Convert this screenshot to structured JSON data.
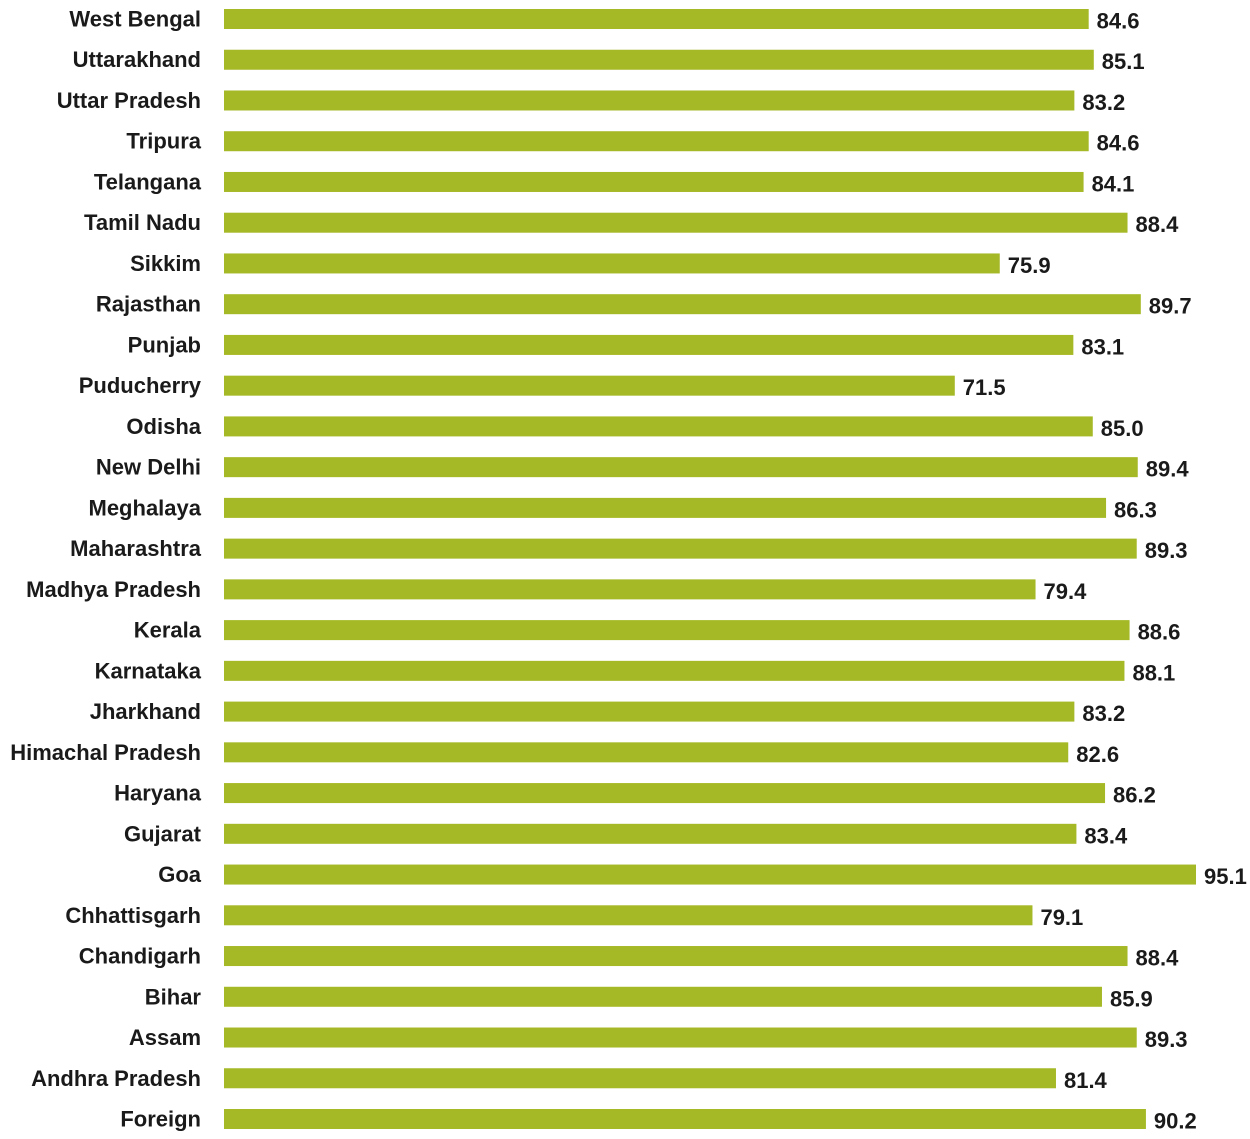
{
  "chart_data": {
    "type": "bar",
    "orientation": "horizontal",
    "title": "",
    "xlabel": "",
    "ylabel": "",
    "xlim": [
      0,
      95.1
    ],
    "grid": false,
    "legend": "none",
    "bar_color": "#a5b825",
    "categories": [
      "West Bengal",
      "Uttarakhand",
      "Uttar Pradesh",
      "Tripura",
      "Telangana",
      "Tamil Nadu",
      "Sikkim",
      "Rajasthan",
      "Punjab",
      "Puducherry",
      "Odisha",
      "New Delhi",
      "Meghalaya",
      "Maharashtra",
      "Madhya Pradesh",
      "Kerala",
      "Karnataka",
      "Jharkhand",
      "Himachal Pradesh",
      "Haryana",
      "Gujarat",
      "Goa",
      "Chhattisgarh",
      "Chandigarh",
      "Bihar",
      "Assam",
      "Andhra Pradesh",
      "Foreign"
    ],
    "values": [
      84.6,
      85.1,
      83.2,
      84.6,
      84.1,
      88.4,
      75.9,
      89.7,
      83.1,
      71.5,
      85.0,
      89.4,
      86.3,
      89.3,
      79.4,
      88.6,
      88.1,
      83.2,
      82.6,
      86.2,
      83.4,
      95.1,
      79.1,
      88.4,
      85.9,
      89.3,
      81.4,
      90.2
    ],
    "value_labels": [
      "84.6",
      "85.1",
      "83.2",
      "84.6",
      "84.1",
      "88.4",
      "75.9",
      "89.7",
      "83.1",
      "71.5",
      "85.0",
      "89.4",
      "86.3",
      "89.3",
      "79.4",
      "88.6",
      "88.1",
      "83.2",
      "82.6",
      "86.2",
      "83.4",
      "95.1",
      "79.1",
      "88.4",
      "85.9",
      "89.3",
      "81.4",
      "90.2"
    ]
  }
}
